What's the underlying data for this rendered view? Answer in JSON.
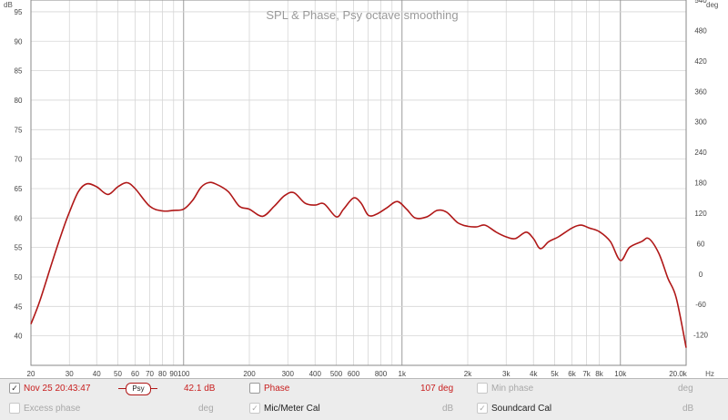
{
  "chart_data": {
    "type": "line",
    "title": "SPL & Phase, Psy octave smoothing",
    "x_scale": "log",
    "xlim": [
      20,
      20000
    ],
    "ylim": [
      35,
      97
    ],
    "y2lim": [
      -180,
      540
    ],
    "left_unit": "dB",
    "right_unit": "deg",
    "x_unit": "Hz",
    "grid": true,
    "x_ticks": [
      {
        "v": 20,
        "label": "20",
        "major": false
      },
      {
        "v": 30,
        "label": "30",
        "major": false
      },
      {
        "v": 40,
        "label": "40",
        "major": false
      },
      {
        "v": 50,
        "label": "50",
        "major": false
      },
      {
        "v": 60,
        "label": "60",
        "major": false
      },
      {
        "v": 70,
        "label": "70",
        "major": false
      },
      {
        "v": 80,
        "label": "80",
        "major": false
      },
      {
        "v": 90,
        "label": "90",
        "major": false
      },
      {
        "v": 100,
        "label": "100",
        "major": true
      },
      {
        "v": 200,
        "label": "200",
        "major": false
      },
      {
        "v": 300,
        "label": "300",
        "major": false
      },
      {
        "v": 400,
        "label": "400",
        "major": false
      },
      {
        "v": 500,
        "label": "500",
        "major": false
      },
      {
        "v": 600,
        "label": "600",
        "major": false
      },
      {
        "v": 800,
        "label": "800",
        "major": false
      },
      {
        "v": 1000,
        "label": "1k",
        "major": true
      },
      {
        "v": 2000,
        "label": "2k",
        "major": false
      },
      {
        "v": 3000,
        "label": "3k",
        "major": false
      },
      {
        "v": 4000,
        "label": "4k",
        "major": false
      },
      {
        "v": 5000,
        "label": "5k",
        "major": false
      },
      {
        "v": 6000,
        "label": "6k",
        "major": false
      },
      {
        "v": 7000,
        "label": "7k",
        "major": false
      },
      {
        "v": 8000,
        "label": "8k",
        "major": false
      },
      {
        "v": 10000,
        "label": "10k",
        "major": true
      },
      {
        "v": 20000,
        "label": "20.0k",
        "major": false
      }
    ],
    "x_minor_grid": [
      700,
      900
    ],
    "y_ticks": [
      40,
      45,
      50,
      55,
      60,
      65,
      70,
      75,
      80,
      85,
      90,
      95
    ],
    "y2_ticks": [
      -120,
      -60,
      0,
      60,
      120,
      180,
      240,
      300,
      360,
      420,
      480,
      540
    ],
    "series": [
      {
        "name": "Nov 25 20:43:47",
        "color": "#b01818",
        "points": [
          [
            20,
            42
          ],
          [
            22,
            46
          ],
          [
            25,
            52.5
          ],
          [
            28,
            58
          ],
          [
            30,
            61
          ],
          [
            33,
            64.5
          ],
          [
            36,
            65.8
          ],
          [
            40,
            65.3
          ],
          [
            45,
            64
          ],
          [
            50,
            65.3
          ],
          [
            55,
            66
          ],
          [
            60,
            65
          ],
          [
            70,
            62
          ],
          [
            80,
            61.2
          ],
          [
            90,
            61.3
          ],
          [
            100,
            61.5
          ],
          [
            110,
            63
          ],
          [
            120,
            65.2
          ],
          [
            130,
            66
          ],
          [
            140,
            65.8
          ],
          [
            160,
            64.5
          ],
          [
            180,
            62
          ],
          [
            200,
            61.5
          ],
          [
            230,
            60.3
          ],
          [
            260,
            62
          ],
          [
            290,
            63.8
          ],
          [
            320,
            64.3
          ],
          [
            360,
            62.5
          ],
          [
            400,
            62.2
          ],
          [
            440,
            62.4
          ],
          [
            500,
            60.2
          ],
          [
            540,
            61.5
          ],
          [
            600,
            63.4
          ],
          [
            650,
            62.5
          ],
          [
            700,
            60.5
          ],
          [
            760,
            60.6
          ],
          [
            850,
            61.7
          ],
          [
            950,
            62.8
          ],
          [
            1050,
            61.5
          ],
          [
            1150,
            60
          ],
          [
            1300,
            60.2
          ],
          [
            1450,
            61.3
          ],
          [
            1600,
            61
          ],
          [
            1800,
            59.2
          ],
          [
            2000,
            58.6
          ],
          [
            2200,
            58.5
          ],
          [
            2400,
            58.8
          ],
          [
            2700,
            57.6
          ],
          [
            3000,
            56.8
          ],
          [
            3300,
            56.5
          ],
          [
            3700,
            57.6
          ],
          [
            4000,
            56.5
          ],
          [
            4300,
            54.8
          ],
          [
            4700,
            56
          ],
          [
            5200,
            56.8
          ],
          [
            6000,
            58.3
          ],
          [
            6600,
            58.8
          ],
          [
            7200,
            58.3
          ],
          [
            8000,
            57.7
          ],
          [
            9000,
            56
          ],
          [
            10000,
            52.8
          ],
          [
            11000,
            55
          ],
          [
            12500,
            56
          ],
          [
            13500,
            56.5
          ],
          [
            15000,
            54
          ],
          [
            16500,
            49.8
          ],
          [
            18000,
            46.5
          ],
          [
            20000,
            38
          ]
        ]
      }
    ]
  },
  "legend": {
    "row1": {
      "series_name": "Nov 25 20:43:47",
      "smoothing": "Psy",
      "level": "42.1 dB",
      "phase_label": "Phase",
      "phase_value": "107 deg",
      "min_phase_label": "Min phase",
      "min_phase_unit": "deg"
    },
    "row2": {
      "excess_phase_label": "Excess phase",
      "excess_phase_unit": "deg",
      "mic_cal_label": "Mic/Meter Cal",
      "mic_cal_unit": "dB",
      "soundcard_cal_label": "Soundcard Cal",
      "soundcard_cal_unit": "dB"
    },
    "check_glyph": "✓",
    "checked": {
      "series": true,
      "phase": false,
      "min_phase": false,
      "excess_phase": false,
      "mic_cal": true,
      "soundcard_cal": true
    }
  },
  "colors": {
    "trace": "#b01818",
    "grid_major": "#9c9c9c",
    "grid_minor": "#d6d6d6",
    "title": "#9a9a9a",
    "legend_red": "#c81e1e"
  }
}
